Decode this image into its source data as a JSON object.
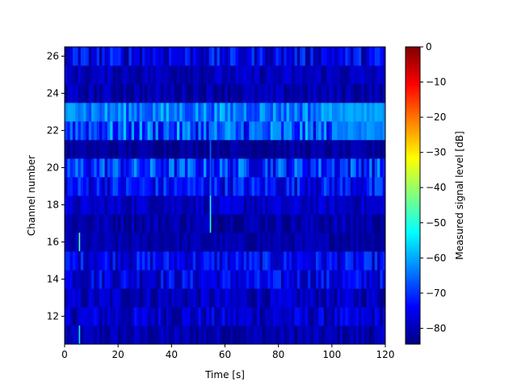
{
  "chart_data": {
    "type": "heatmap",
    "title": "",
    "xlabel": "Time [s]",
    "ylabel": "Channel number",
    "xlim": [
      0,
      120
    ],
    "ylim": [
      10.5,
      26.5
    ],
    "x_ticks": [
      0,
      20,
      40,
      60,
      80,
      100,
      120
    ],
    "y_ticks": [
      12,
      14,
      16,
      18,
      20,
      22,
      24,
      26
    ],
    "channels": [
      11,
      12,
      13,
      14,
      15,
      16,
      17,
      18,
      19,
      20,
      21,
      22,
      23,
      24,
      25,
      26
    ],
    "time_step_s": 1,
    "channel_profiles": [
      {
        "channel": 11,
        "base_db": -82,
        "variation_db": 4
      },
      {
        "channel": 12,
        "base_db": -80,
        "variation_db": 6
      },
      {
        "channel": 13,
        "base_db": -81,
        "variation_db": 5
      },
      {
        "channel": 14,
        "base_db": -78,
        "variation_db": 7
      },
      {
        "channel": 15,
        "base_db": -77,
        "variation_db": 7
      },
      {
        "channel": 16,
        "base_db": -82,
        "variation_db": 3
      },
      {
        "channel": 17,
        "base_db": -82,
        "variation_db": 4
      },
      {
        "channel": 18,
        "base_db": -80,
        "variation_db": 4
      },
      {
        "channel": 19,
        "base_db": -76,
        "variation_db": 8
      },
      {
        "channel": 20,
        "base_db": -73,
        "variation_db": 10
      },
      {
        "channel": 21,
        "base_db": -83,
        "variation_db": 3
      },
      {
        "channel": 22,
        "base_db": -71,
        "variation_db": 11
      },
      {
        "channel": 23,
        "base_db": -66,
        "variation_db": 7
      },
      {
        "channel": 24,
        "base_db": -82,
        "variation_db": 4
      },
      {
        "channel": 25,
        "base_db": -81,
        "variation_db": 4
      },
      {
        "channel": 26,
        "base_db": -78,
        "variation_db": 8
      }
    ],
    "highlights": [
      {
        "channel": 23,
        "t_from": 0,
        "t_to": 8,
        "value_db": -62
      },
      {
        "channel": 23,
        "t_from": 97,
        "t_to": 120,
        "value_db": -61
      },
      {
        "channel": 22,
        "t_from": 100,
        "t_to": 120,
        "value_db": -63
      }
    ],
    "spikes": [
      {
        "channel_from": 17,
        "channel_to": 19,
        "t": 54.5,
        "value_db": -50
      },
      {
        "channel_from": 19,
        "channel_to": 23,
        "t": 54.5,
        "value_db": -66
      },
      {
        "channel_from": 16,
        "channel_to": 16,
        "t": 5.5,
        "value_db": -45
      },
      {
        "channel_from": 11,
        "channel_to": 11,
        "t": 5.5,
        "value_db": -55
      }
    ],
    "colorbar": {
      "label": "Measured signal level [dB]",
      "colormap": "jet",
      "vmin": -84.5,
      "vmax": 0,
      "ticks": [
        0,
        -10,
        -20,
        -30,
        -40,
        -50,
        -60,
        -70,
        -80
      ]
    },
    "grid": false,
    "legend": "none"
  }
}
